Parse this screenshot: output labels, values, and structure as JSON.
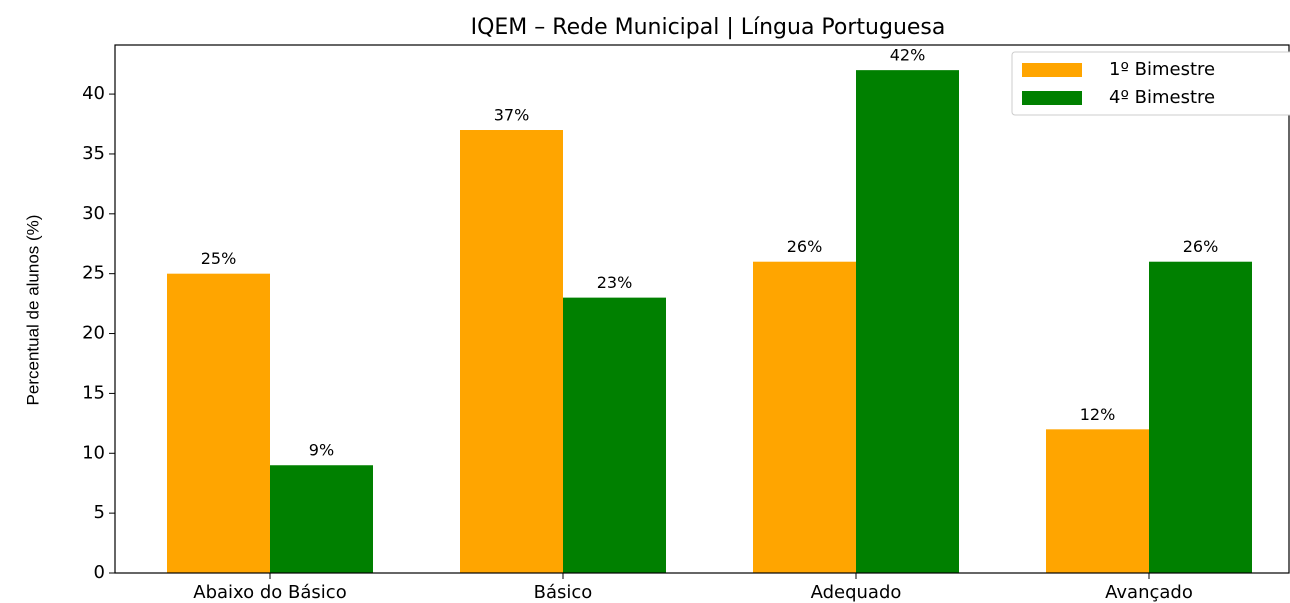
{
  "chart_data": {
    "type": "bar",
    "title": "IQEM – Rede Municipal | Língua Portuguesa",
    "ylabel": "Percentual de alunos (%)",
    "categories": [
      "Abaixo do Básico",
      "Básico",
      "Adequado",
      "Avançado"
    ],
    "series": [
      {
        "name": "1º Bimestre",
        "color": "#ffa500",
        "values": [
          25,
          37,
          26,
          12
        ],
        "value_labels": [
          "25%",
          "37%",
          "26%",
          "12%"
        ]
      },
      {
        "name": "4º Bimestre",
        "color": "#008000",
        "values": [
          9,
          23,
          42,
          26
        ],
        "value_labels": [
          "9%",
          "23%",
          "42%",
          "26%"
        ]
      }
    ],
    "ylim": [
      0,
      44.1
    ],
    "yticks": [
      0,
      5,
      10,
      15,
      20,
      25,
      30,
      35,
      40
    ],
    "grid": false,
    "legend": "upper right"
  }
}
